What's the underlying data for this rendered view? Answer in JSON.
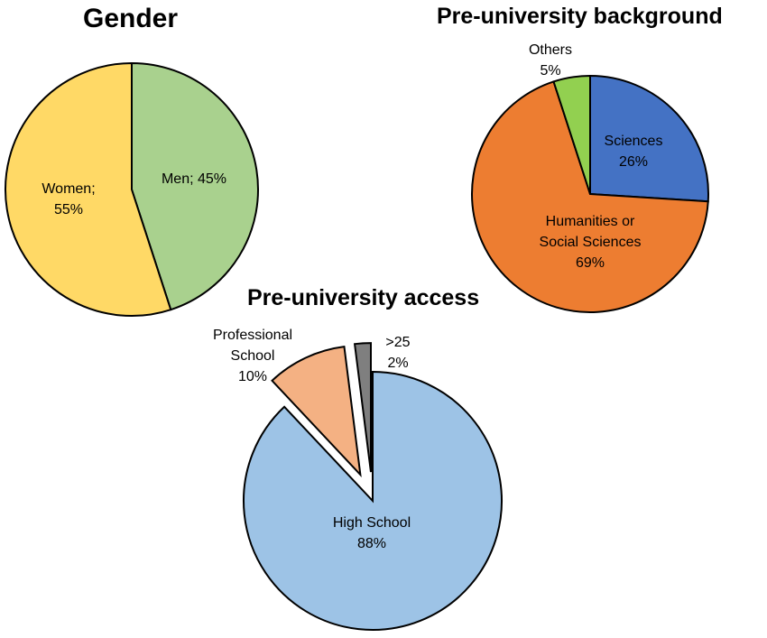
{
  "chart_data": [
    {
      "type": "pie",
      "title": "Gender",
      "slices": [
        {
          "label": "Men",
          "value": 45,
          "value_text": "45%",
          "color": "#a9d18e"
        },
        {
          "label": "Women",
          "value": 55,
          "value_text": "55%",
          "color": "#ffd966"
        }
      ],
      "label_format": "inline category; value"
    },
    {
      "type": "pie",
      "title": "Pre-university background",
      "slices": [
        {
          "label": "Sciences",
          "value": 26,
          "value_text": "26%",
          "color": "#4472c4"
        },
        {
          "label": "Humanities or Social Sciences",
          "value": 69,
          "value_text": "69%",
          "color": "#ed7d31"
        },
        {
          "label": "Others",
          "value": 5,
          "value_text": "5%",
          "color": "#92d050"
        }
      ]
    },
    {
      "type": "pie",
      "title": "Pre-university access",
      "exploded": true,
      "slices": [
        {
          "label": "High School",
          "value": 88,
          "value_text": "88%",
          "color": "#9dc3e6"
        },
        {
          "label": "Professional School",
          "value": 10,
          "value_text": "10%",
          "color": "#f4b183"
        },
        {
          "label": ">25",
          "value": 2,
          "value_text": "2%",
          "color": "#7f7f7f"
        }
      ]
    }
  ]
}
